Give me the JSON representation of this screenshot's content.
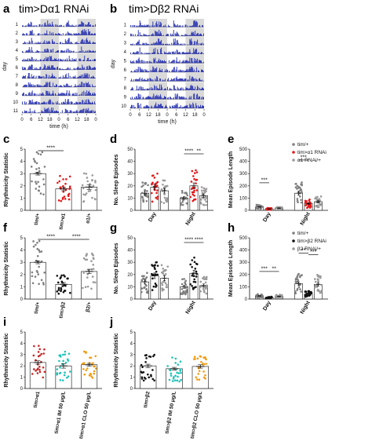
{
  "figure": {
    "panel_letters": [
      "a",
      "b",
      "c",
      "d",
      "e",
      "f",
      "g",
      "h",
      "i",
      "j"
    ]
  },
  "actograms": {
    "a": {
      "title": "tim>Dα1 RNAi",
      "ylabel": "day",
      "xlabel": "time (h)",
      "ticks": [
        "0",
        "6",
        "12",
        "18",
        "0",
        "6",
        "12",
        "18",
        "0"
      ],
      "days": [
        "1",
        "2",
        "3",
        "4",
        "5",
        "6",
        "7",
        "8",
        "9",
        "10",
        "11"
      ],
      "color": "#1f2ab0"
    },
    "b": {
      "title": "tim>Dβ2 RNAi",
      "ylabel": "day",
      "xlabel": "time (h)",
      "ticks": [
        "0",
        "6",
        "12",
        "18",
        "0",
        "6",
        "12",
        "18",
        "0"
      ],
      "days": [
        "1",
        "2",
        "3",
        "4",
        "5",
        "6",
        "7",
        "8",
        "9",
        "10"
      ],
      "color": "#1f2ab0"
    }
  },
  "colors": {
    "control": "#7f7f7f",
    "knockdown_dots": "#e41a1c",
    "rnai_ctrl": "#9a9a9a",
    "teal": "#21c4b8",
    "orange": "#f39c12",
    "darkred": "#c62828",
    "black": "#111111"
  },
  "chart_data": [
    {
      "panel": "c",
      "type": "bar",
      "ylabel": "Rhythmicity Statistic",
      "categories": [
        "tim/+",
        "tim>α1",
        "α1/+"
      ],
      "values": [
        3.0,
        1.75,
        1.9
      ],
      "errors": [
        0.12,
        0.15,
        0.2
      ],
      "dot_colors": [
        "#7f7f7f",
        "#e41a1c",
        "#9a9a9a"
      ],
      "ylim": [
        0,
        5
      ],
      "yticks": [
        "0",
        "1",
        "2",
        "3",
        "4",
        "5"
      ],
      "significance": [
        {
          "from": 0,
          "to": 1,
          "label": "****"
        }
      ]
    },
    {
      "panel": "d",
      "type": "bar",
      "ylabel": "No. Sleep Episodes",
      "groups": [
        "Day",
        "Night"
      ],
      "series": [
        {
          "values": [
            14,
            10
          ]
        },
        {
          "values": [
            19,
            20
          ]
        },
        {
          "values": [
            16,
            12
          ]
        }
      ],
      "dot_colors": [
        "#7f7f7f",
        "#e41a1c",
        "#9a9a9a"
      ],
      "ylim": [
        0,
        50
      ],
      "yticks": [
        "0",
        "10",
        "20",
        "30",
        "40",
        "50"
      ],
      "significance": [
        {
          "group": 1,
          "from": 0,
          "to": 1,
          "label": "****"
        },
        {
          "group": 1,
          "from": 1,
          "to": 2,
          "label": "**"
        }
      ]
    },
    {
      "panel": "e",
      "type": "bar",
      "ylabel": "Mean Episode Length",
      "groups": [
        "Day",
        "Night"
      ],
      "series": [
        {
          "values": [
            28,
            140
          ]
        },
        {
          "values": [
            12,
            55
          ]
        },
        {
          "values": [
            18,
            70
          ]
        }
      ],
      "dot_colors": [
        "#7f7f7f",
        "#e41a1c",
        "#9a9a9a"
      ],
      "ylim": [
        0,
        500
      ],
      "yticks": [
        "0",
        "100",
        "200",
        "300",
        "400",
        "500"
      ],
      "legend": [
        "tim/+",
        "tim>α1 RNAi",
        "α1 RNAi/+"
      ],
      "legend_position": "top-right",
      "significance": [
        {
          "group": 0,
          "from": 0,
          "to": 1,
          "label": "***"
        },
        {
          "group": 1,
          "from": 0,
          "to": 1,
          "label": "***"
        }
      ]
    },
    {
      "panel": "f",
      "type": "bar",
      "ylabel": "Rhythmicity Statistic",
      "categories": [
        "tim/+",
        "tim>β2",
        "β2/+"
      ],
      "values": [
        3.0,
        1.2,
        2.25
      ],
      "errors": [
        0.12,
        0.15,
        0.18
      ],
      "dot_colors": [
        "#7f7f7f",
        "#111111",
        "#9a9a9a"
      ],
      "ylim": [
        0,
        5
      ],
      "yticks": [
        "0",
        "1",
        "2",
        "3",
        "4",
        "5"
      ],
      "significance": [
        {
          "from": 0,
          "to": 1,
          "label": "****"
        },
        {
          "from": 1,
          "to": 2,
          "label": "****"
        }
      ]
    },
    {
      "panel": "g",
      "type": "bar",
      "ylabel": "No. Sleep Episodes",
      "groups": [
        "Day",
        "Night"
      ],
      "series": [
        {
          "values": [
            14,
            10
          ]
        },
        {
          "values": [
            19,
            21
          ]
        },
        {
          "values": [
            17,
            11
          ]
        }
      ],
      "dot_colors": [
        "#7f7f7f",
        "#111111",
        "#9a9a9a"
      ],
      "ylim": [
        0,
        50
      ],
      "yticks": [
        "0",
        "10",
        "20",
        "30",
        "40",
        "50"
      ],
      "significance": [
        {
          "group": 1,
          "from": 0,
          "to": 1,
          "label": "****"
        },
        {
          "group": 1,
          "from": 1,
          "to": 2,
          "label": "****"
        }
      ]
    },
    {
      "panel": "h",
      "type": "bar",
      "ylabel": "Mean Episode Length",
      "groups": [
        "Day",
        "Night"
      ],
      "series": [
        {
          "values": [
            25,
            125
          ]
        },
        {
          "values": [
            12,
            40
          ]
        },
        {
          "values": [
            22,
            120
          ]
        }
      ],
      "dot_colors": [
        "#7f7f7f",
        "#111111",
        "#9a9a9a"
      ],
      "ylim": [
        0,
        500
      ],
      "yticks": [
        "0",
        "100",
        "200",
        "300",
        "400",
        "500"
      ],
      "legend": [
        "tim/+",
        "tim>β2 RNAi",
        "β2 RNAi/+"
      ],
      "legend_position": "top-right",
      "significance": [
        {
          "group": 0,
          "from": 0,
          "to": 1,
          "label": "***"
        },
        {
          "group": 0,
          "from": 1,
          "to": 2,
          "label": "**"
        },
        {
          "group": 1,
          "from": 0,
          "to": 1,
          "label": "**"
        },
        {
          "group": 1,
          "from": 1,
          "to": 2,
          "label": "***"
        }
      ]
    },
    {
      "panel": "i",
      "type": "bar",
      "ylabel": "Rhythmicity Statistic",
      "categories": [
        "tim>α1",
        "tim>α1 IM 50 μg/L",
        "tim>α1 CLO 50 μg/L"
      ],
      "values": [
        2.3,
        2.0,
        2.1
      ],
      "errors": [
        0.15,
        0.2,
        0.12
      ],
      "dot_colors": [
        "#c62828",
        "#21c4b8",
        "#f39c12"
      ],
      "ylim": [
        0,
        5
      ],
      "yticks": [
        "0",
        "1",
        "2",
        "3",
        "4",
        "5"
      ]
    },
    {
      "panel": "j",
      "type": "bar",
      "ylabel": "Rhythmicity Statistic",
      "categories": [
        "tim>β2",
        "tim>β2 IM 50 μg/L",
        "tim>β2 CLO 50 μg/L"
      ],
      "values": [
        2.0,
        1.75,
        1.95
      ],
      "errors": [
        0.15,
        0.12,
        0.15
      ],
      "dot_colors": [
        "#111111",
        "#21c4b8",
        "#f39c12"
      ],
      "ylim": [
        0,
        5
      ],
      "yticks": [
        "0",
        "1",
        "2",
        "3",
        "4",
        "5"
      ]
    }
  ]
}
